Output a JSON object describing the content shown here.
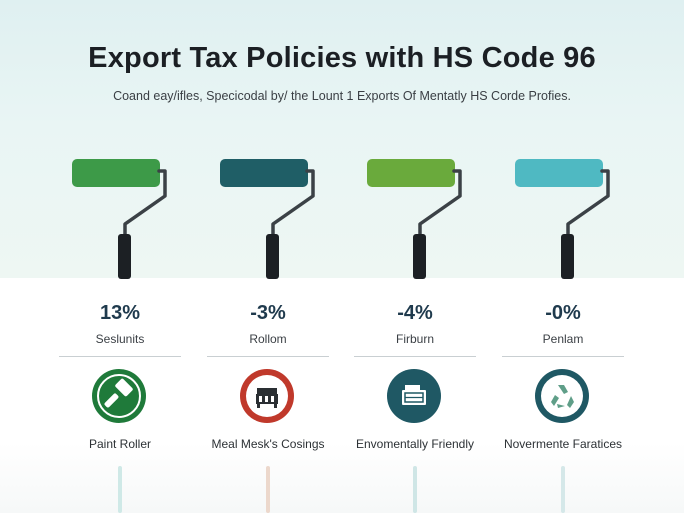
{
  "header": {
    "title": "Export Tax Policies with HS Code  96",
    "subtitle": "Coand eay/ifles, Specicodal by/ the Lount 1 Exports Of Mentatly HS Corde Profies."
  },
  "columns": [
    {
      "percent": "13%",
      "label": "Seslunits",
      "caption": "Paint Roller",
      "icon": "hammer-icon",
      "roller_color": "#3d9a48",
      "icon_color": "#1f7a3a",
      "stem_color": "#cfe9e7"
    },
    {
      "percent": "-3%",
      "label": "Rollom",
      "caption": "Meal Mesk's Cosings",
      "icon": "toolbox-icon",
      "roller_color": "#1f5e66",
      "icon_color": "#c0392b",
      "stem_color": "#ecd8cc"
    },
    {
      "percent": "-4%",
      "label": "Firburn",
      "caption": "Envomentally Friendly",
      "icon": "box-icon",
      "roller_color": "#6aaa3c",
      "icon_color": "#1f5864",
      "stem_color": "#cfe6e6"
    },
    {
      "percent": "-0%",
      "label": "Penlam",
      "caption": "Novermente Faratices",
      "icon": "recycle-icon",
      "roller_color": "#4fb9c2",
      "icon_color": "#1f5864",
      "stem_color": "#d5e8e9"
    }
  ]
}
